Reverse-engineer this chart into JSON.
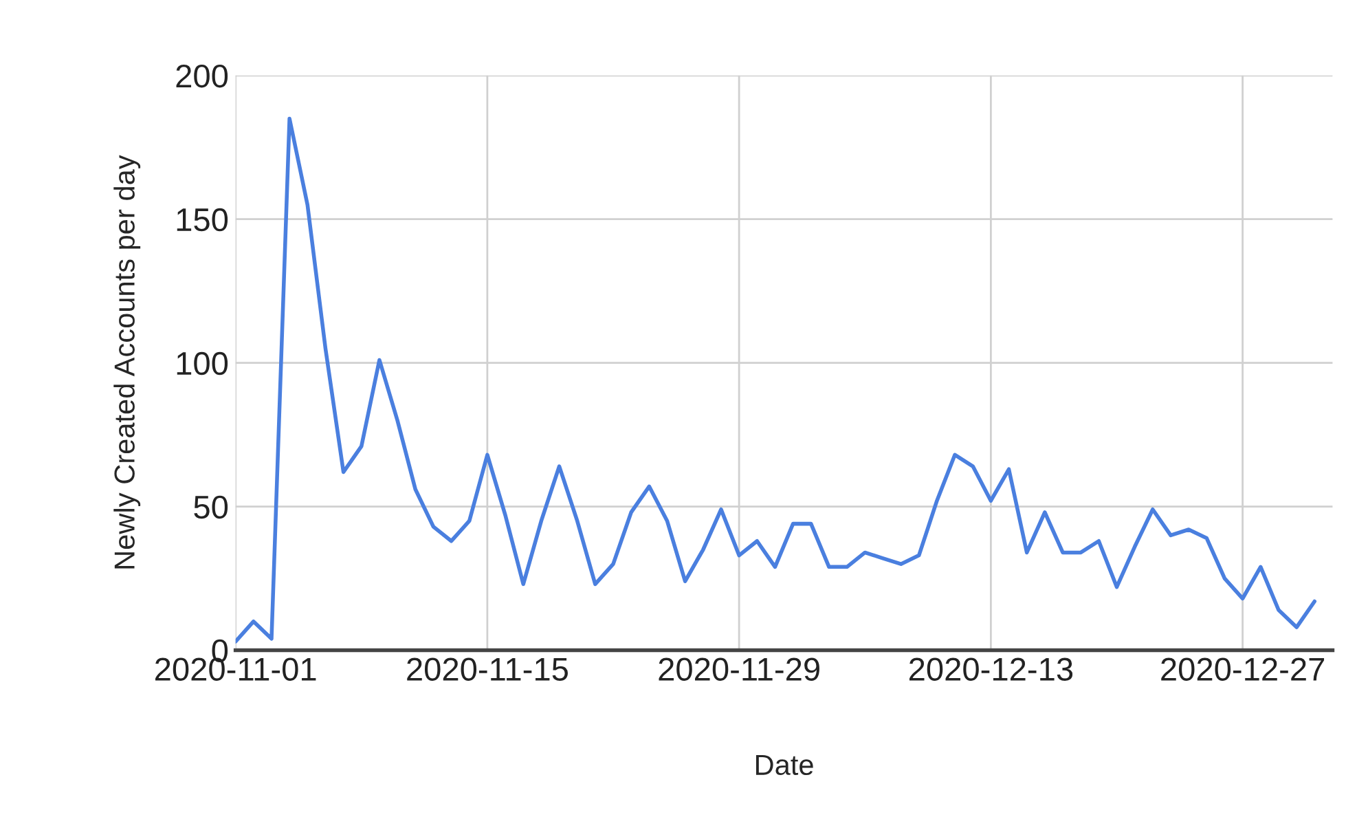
{
  "chart_data": {
    "type": "line",
    "xlabel": "Date",
    "ylabel": "Newly Created Accounts per day",
    "x": [
      "2020-11-01",
      "2020-11-02",
      "2020-11-03",
      "2020-11-04",
      "2020-11-05",
      "2020-11-06",
      "2020-11-07",
      "2020-11-08",
      "2020-11-09",
      "2020-11-10",
      "2020-11-11",
      "2020-11-12",
      "2020-11-13",
      "2020-11-14",
      "2020-11-15",
      "2020-11-16",
      "2020-11-17",
      "2020-11-18",
      "2020-11-19",
      "2020-11-20",
      "2020-11-21",
      "2020-11-22",
      "2020-11-23",
      "2020-11-24",
      "2020-11-25",
      "2020-11-26",
      "2020-11-27",
      "2020-11-28",
      "2020-11-29",
      "2020-11-30",
      "2020-12-01",
      "2020-12-02",
      "2020-12-03",
      "2020-12-04",
      "2020-12-05",
      "2020-12-06",
      "2020-12-07",
      "2020-12-08",
      "2020-12-09",
      "2020-12-10",
      "2020-12-11",
      "2020-12-12",
      "2020-12-13",
      "2020-12-14",
      "2020-12-15",
      "2020-12-16",
      "2020-12-17",
      "2020-12-18",
      "2020-12-19",
      "2020-12-20",
      "2020-12-21",
      "2020-12-22",
      "2020-12-23",
      "2020-12-24",
      "2020-12-25",
      "2020-12-26",
      "2020-12-27",
      "2020-12-28",
      "2020-12-29",
      "2020-12-30",
      "2020-12-31"
    ],
    "series": [
      {
        "color": "#4a7fdf",
        "values": [
          3,
          10,
          4,
          185,
          155,
          105,
          62,
          71,
          101,
          80,
          56,
          43,
          38,
          45,
          68,
          47,
          23,
          45,
          64,
          45,
          23,
          30,
          48,
          57,
          45,
          24,
          35,
          49,
          33,
          38,
          29,
          44,
          44,
          29,
          29,
          34,
          32,
          30,
          33,
          52,
          68,
          64,
          52,
          63,
          34,
          48,
          34,
          34,
          38,
          22,
          36,
          49,
          40,
          42,
          39,
          25,
          18,
          29,
          14,
          8,
          17
        ]
      }
    ],
    "xlim": [
      "2020-11-01",
      "2021-01-01"
    ],
    "xticks": [
      "2020-11-01",
      "2020-11-15",
      "2020-11-29",
      "2020-12-13",
      "2020-12-27"
    ],
    "ylim": [
      0,
      200
    ],
    "yticks": [
      0,
      50,
      100,
      150,
      200
    ],
    "grid": true,
    "marker": "none",
    "line_style": "solid"
  }
}
